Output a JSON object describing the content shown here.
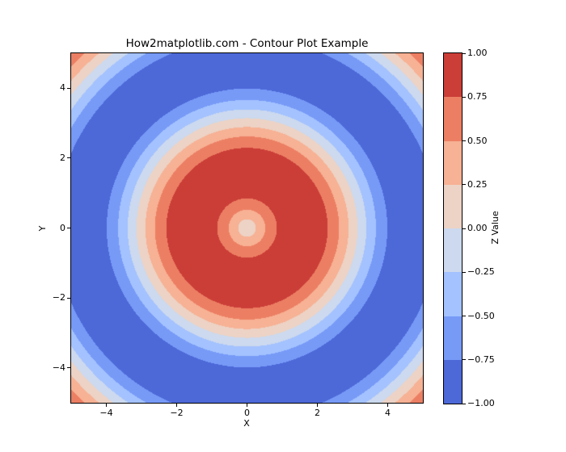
{
  "chart_data": {
    "type": "contour",
    "title": "How2matplotlib.com - Contour Plot Example",
    "xlabel": "X",
    "ylabel": "Y",
    "function": "z = sin(sqrt(x^2 + y^2))",
    "colormap": "coolwarm",
    "x_range": [
      -5,
      5
    ],
    "y_range": [
      -5,
      5
    ],
    "x_ticks": [
      -4,
      -2,
      0,
      2,
      4
    ],
    "x_tick_labels": [
      "−4",
      "−2",
      "0",
      "2",
      "4"
    ],
    "y_ticks": [
      -4,
      -2,
      0,
      2,
      4
    ],
    "y_tick_labels": [
      "−4",
      "−2",
      "0",
      "2",
      "4"
    ],
    "levels": [
      -1.0,
      -0.75,
      -0.5,
      -0.25,
      0.0,
      0.25,
      0.5,
      0.75,
      1.0
    ],
    "band_colors": [
      "#4D68D7",
      "#779AF7",
      "#A3C2FF",
      "#CCD9EE",
      "#ECD3C5",
      "#F7B194",
      "#EC7F63",
      "#CB3E38"
    ],
    "colorbar": {
      "label": "Z Value",
      "tick_labels": [
        "1.00",
        "0.75",
        "0.50",
        "0.25",
        "0.00",
        "−0.25",
        "−0.50",
        "−0.75",
        "−1.00"
      ]
    },
    "background": "#FFFFFF"
  }
}
